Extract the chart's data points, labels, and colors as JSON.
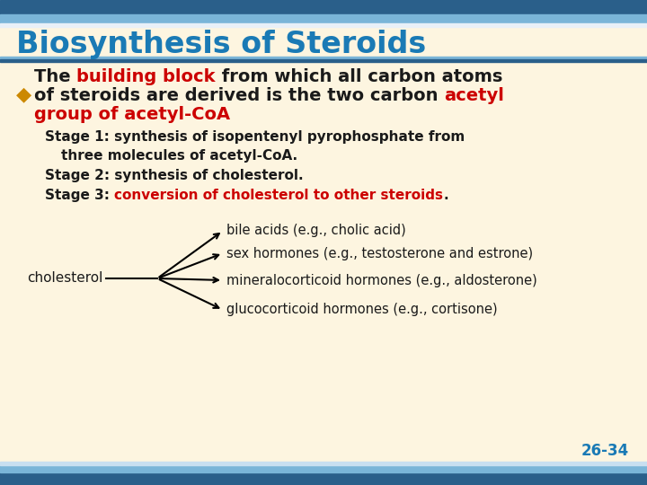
{
  "title": "Biosynthesis of Steroids",
  "title_color": "#1a7ab5",
  "title_fontsize": 24,
  "bg_color": "#fdf5e0",
  "text_color": "#1a1a1a",
  "red_color": "#cc0000",
  "slide_number": "26-34",
  "slide_number_color": "#1a7ab5",
  "bullet_color": "#cc8800",
  "header_top_color": "#c8dff0",
  "header_mid_color": "#5a9ec8",
  "header_bot_color": "#2a5f8a",
  "footer_top_color": "#2a5f8a",
  "footer_mid_color": "#5a9ec8",
  "footer_bot_color": "#c8dff0",
  "diagram_labels": [
    "bile acids (e.g., cholic acid)",
    "sex hormones (e.g., testosterone and estrone)",
    "mineralocorticoid hormones (e.g., aldosterone)",
    "glucocorticoid hormones (e.g., cortisone)"
  ]
}
